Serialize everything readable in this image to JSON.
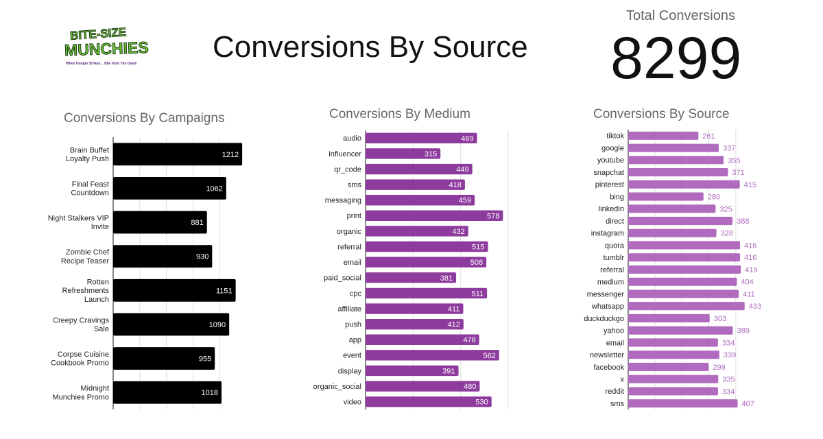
{
  "header": {
    "logo_line1": "BITE-SIZE",
    "logo_line2": "MUNCHIES",
    "logo_tagline": "When Hunger Strikes... Bite from The Dead!",
    "title": "Conversions By Source",
    "total_label": "Total Conversions",
    "total_value": "8299"
  },
  "colors": {
    "campaign_bar": "#000000",
    "medium_bar": "#8e3b9e",
    "source_bar": "#b06bbf",
    "source_label": "#b06bbf"
  },
  "chart_data": [
    {
      "type": "bar",
      "orientation": "horizontal",
      "title": "Conversions By Campaigns",
      "categories": [
        [
          "Brain Buffet",
          "Loyalty Push"
        ],
        [
          "Final Feast",
          "Countdown"
        ],
        [
          "Night Stalkers VIP",
          "Invite"
        ],
        [
          "Zombie Chef",
          "Recipe Teaser"
        ],
        [
          "Rotten",
          "Refreshments",
          "Launch"
        ],
        [
          "Creepy Cravings",
          "Sale"
        ],
        [
          "Corpse Cuisine",
          "Cookbook Promo"
        ],
        [
          "Midnight",
          "Munchies Promo"
        ]
      ],
      "values": [
        1212,
        1062,
        881,
        930,
        1151,
        1090,
        955,
        1018
      ],
      "xlim": [
        0,
        1250
      ],
      "grid": true,
      "label_position": "inside"
    },
    {
      "type": "bar",
      "orientation": "horizontal",
      "title": "Conversions By Medium",
      "categories": [
        "audio",
        "influencer",
        "qr_code",
        "sms",
        "messaging",
        "print",
        "organic",
        "referral",
        "email",
        "paid_social",
        "cpc",
        "affiliate",
        "push",
        "app",
        "event",
        "display",
        "organic_social",
        "video"
      ],
      "values": [
        469,
        315,
        449,
        418,
        459,
        578,
        432,
        515,
        508,
        381,
        511,
        411,
        412,
        478,
        562,
        391,
        480,
        530
      ],
      "xlim": [
        0,
        600
      ],
      "grid": true,
      "label_position": "inside"
    },
    {
      "type": "bar",
      "orientation": "horizontal",
      "title": "Conversions By Source",
      "categories": [
        "tiktok",
        "google",
        "youtube",
        "snapchat",
        "pinterest",
        "bing",
        "linkedin",
        "direct",
        "instagram",
        "quora",
        "tumblr",
        "referral",
        "medium",
        "messenger",
        "whatsapp",
        "duckduckgo",
        "yahoo",
        "email",
        "newsletter",
        "facebook",
        "x",
        "reddit",
        "sms"
      ],
      "values": [
        261,
        337,
        355,
        371,
        415,
        280,
        325,
        388,
        328,
        416,
        416,
        419,
        404,
        411,
        433,
        303,
        389,
        334,
        339,
        299,
        335,
        334,
        407
      ],
      "xlim": [
        0,
        500
      ],
      "grid": true,
      "label_position": "outside"
    }
  ]
}
